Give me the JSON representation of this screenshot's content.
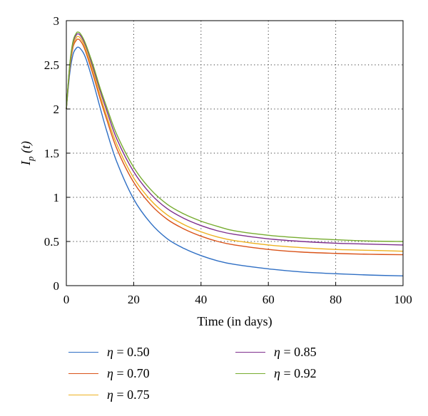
{
  "chart_data": {
    "type": "line",
    "xlabel": "Time (in days)",
    "ylabel": "I_p(t)",
    "ylabel_main": "I",
    "ylabel_sub": "p",
    "ylabel_arg": " (t)",
    "xlim": [
      0,
      100
    ],
    "ylim": [
      0,
      3
    ],
    "xticks": [
      0,
      20,
      40,
      60,
      80,
      100
    ],
    "yticks": [
      0,
      0.5,
      1,
      1.5,
      2,
      2.5,
      3
    ],
    "ytick_labels": [
      "0",
      "0.5",
      "1",
      "1.5",
      "2",
      "2.5",
      "3"
    ],
    "grid": "dotted",
    "legend_position": "bottom",
    "series": [
      {
        "name": "η = 0.50",
        "legend_symbol": "η",
        "legend_value": " = 0.50",
        "color": "#2f6fc4",
        "x": [
          0,
          1,
          2,
          3,
          3.5,
          4,
          5,
          6,
          8,
          10,
          12,
          15,
          20,
          25,
          30,
          35,
          40,
          45,
          50,
          60,
          70,
          80,
          90,
          100
        ],
        "y": [
          2.0,
          2.4,
          2.62,
          2.69,
          2.7,
          2.69,
          2.64,
          2.55,
          2.3,
          2.02,
          1.75,
          1.4,
          0.98,
          0.71,
          0.53,
          0.42,
          0.34,
          0.28,
          0.24,
          0.19,
          0.155,
          0.135,
          0.12,
          0.11
        ]
      },
      {
        "name": "η = 0.70",
        "legend_symbol": "η",
        "legend_value": " = 0.70",
        "color": "#d95319",
        "x": [
          0,
          1,
          2,
          3,
          3.5,
          4,
          5,
          6,
          8,
          10,
          12,
          15,
          20,
          25,
          30,
          35,
          40,
          45,
          50,
          60,
          70,
          80,
          90,
          100
        ],
        "y": [
          2.0,
          2.45,
          2.7,
          2.78,
          2.79,
          2.78,
          2.72,
          2.62,
          2.38,
          2.12,
          1.88,
          1.55,
          1.17,
          0.92,
          0.75,
          0.64,
          0.56,
          0.5,
          0.46,
          0.41,
          0.38,
          0.365,
          0.355,
          0.35
        ]
      },
      {
        "name": "η = 0.75",
        "legend_symbol": "η",
        "legend_value": " = 0.75",
        "color": "#edb120",
        "x": [
          0,
          1,
          2,
          3,
          3.5,
          4,
          5,
          6,
          8,
          10,
          12,
          15,
          20,
          25,
          30,
          35,
          40,
          45,
          50,
          60,
          70,
          80,
          90,
          100
        ],
        "y": [
          2.0,
          2.47,
          2.72,
          2.81,
          2.82,
          2.81,
          2.75,
          2.65,
          2.42,
          2.16,
          1.92,
          1.6,
          1.22,
          0.97,
          0.8,
          0.69,
          0.61,
          0.55,
          0.51,
          0.46,
          0.43,
          0.41,
          0.4,
          0.39
        ]
      },
      {
        "name": "η = 0.85",
        "legend_symbol": "η",
        "legend_value": " = 0.85",
        "color": "#7e2f8e",
        "x": [
          0,
          1,
          2,
          3,
          3.5,
          4,
          5,
          6,
          8,
          10,
          12,
          15,
          20,
          25,
          30,
          35,
          40,
          45,
          50,
          60,
          70,
          80,
          90,
          100
        ],
        "y": [
          2.0,
          2.49,
          2.75,
          2.84,
          2.85,
          2.84,
          2.78,
          2.69,
          2.46,
          2.21,
          1.98,
          1.66,
          1.29,
          1.04,
          0.87,
          0.76,
          0.68,
          0.62,
          0.58,
          0.53,
          0.5,
          0.48,
          0.47,
          0.46
        ]
      },
      {
        "name": "η = 0.92",
        "legend_symbol": "η",
        "legend_value": " = 0.92",
        "color": "#77ac30",
        "x": [
          0,
          1,
          2,
          3,
          3.5,
          4,
          5,
          6,
          8,
          10,
          12,
          15,
          20,
          25,
          30,
          35,
          40,
          45,
          50,
          60,
          70,
          80,
          90,
          100
        ],
        "y": [
          2.0,
          2.5,
          2.77,
          2.86,
          2.87,
          2.86,
          2.8,
          2.71,
          2.49,
          2.24,
          2.02,
          1.71,
          1.34,
          1.09,
          0.92,
          0.81,
          0.73,
          0.67,
          0.62,
          0.57,
          0.54,
          0.52,
          0.505,
          0.5
        ]
      }
    ]
  }
}
